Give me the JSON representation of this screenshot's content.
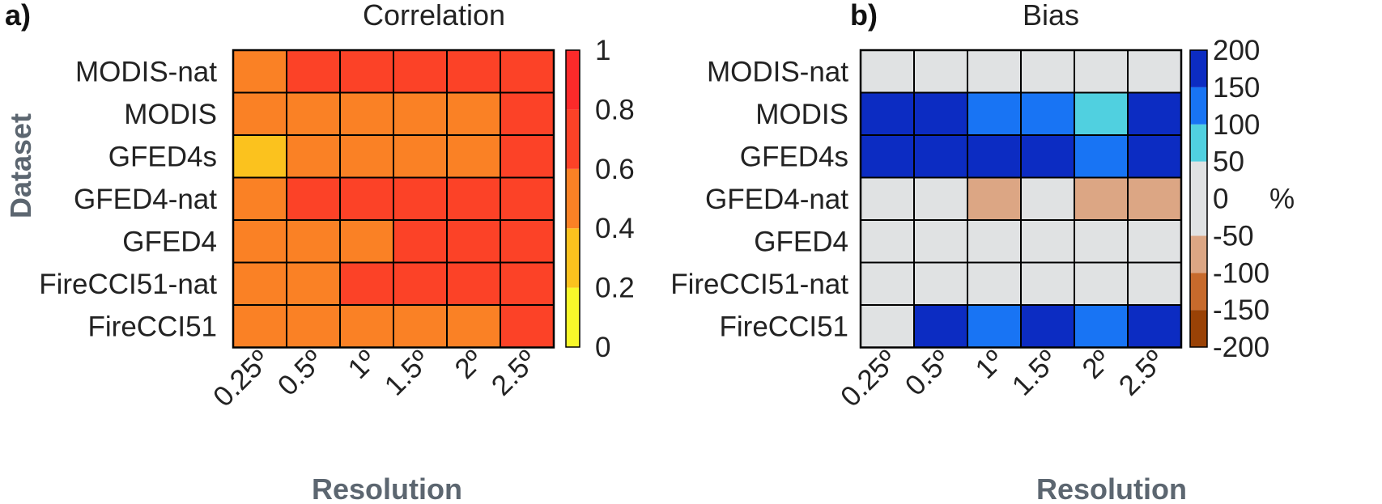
{
  "chart_data": [
    {
      "type": "heatmap",
      "panel_label": "a)",
      "title": "Correlation",
      "xlabel": "Resolution",
      "ylabel": "Dataset",
      "x_categories": [
        "0.25º",
        "0.5º",
        "1º",
        "1.5º",
        "2º",
        "2.5º"
      ],
      "y_categories": [
        "MODIS-nat",
        "MODIS",
        "GFED4s",
        "GFED4-nat",
        "GFED4",
        "FireCCI51-nat",
        "FireCCI51"
      ],
      "values": [
        [
          0.5,
          0.7,
          0.7,
          0.7,
          0.7,
          0.7
        ],
        [
          0.5,
          0.5,
          0.5,
          0.5,
          0.5,
          0.7
        ],
        [
          0.3,
          0.5,
          0.5,
          0.5,
          0.5,
          0.7
        ],
        [
          0.5,
          0.7,
          0.7,
          0.7,
          0.7,
          0.7
        ],
        [
          0.5,
          0.5,
          0.5,
          0.7,
          0.7,
          0.7
        ],
        [
          0.5,
          0.5,
          0.7,
          0.7,
          0.7,
          0.7
        ],
        [
          0.5,
          0.5,
          0.5,
          0.5,
          0.5,
          0.7
        ]
      ],
      "colorbar": {
        "range": [
          0,
          1
        ],
        "ticks": [
          "0",
          "0.2",
          "0.4",
          "0.6",
          "0.8",
          "1"
        ],
        "colors": [
          "#f8f82a",
          "#fbc21e",
          "#fa8125",
          "#fc4227",
          "#fc2a2a"
        ]
      }
    },
    {
      "type": "heatmap",
      "panel_label": "b)",
      "title": "Bias",
      "xlabel": "Resolution",
      "x_categories": [
        "0.25º",
        "0.5º",
        "1º",
        "1.5º",
        "2º",
        "2.5º"
      ],
      "y_categories": [
        "MODIS-nat",
        "MODIS",
        "GFED4s",
        "GFED4-nat",
        "GFED4",
        "FireCCI51-nat",
        "FireCCI51"
      ],
      "values": [
        [
          0,
          0,
          0,
          0,
          0,
          0
        ],
        [
          175,
          175,
          125,
          125,
          75,
          175
        ],
        [
          175,
          175,
          175,
          175,
          125,
          175
        ],
        [
          0,
          0,
          -75,
          0,
          -75,
          -75
        ],
        [
          0,
          0,
          0,
          0,
          0,
          0
        ],
        [
          0,
          0,
          0,
          0,
          0,
          0
        ],
        [
          0,
          175,
          125,
          175,
          125,
          175
        ]
      ],
      "colorbar": {
        "range": [
          -200,
          200
        ],
        "unit": "%",
        "ticks": [
          "-200",
          "-150",
          "-100",
          "-50",
          "0",
          "50",
          "100",
          "150",
          "200"
        ],
        "colors": [
          "#9a4206",
          "#c76a2c",
          "#dca684",
          "#e0e2e3",
          "#e0e2e3",
          "#50d0e0",
          "#1874f4",
          "#0c2cc2"
        ]
      }
    }
  ]
}
